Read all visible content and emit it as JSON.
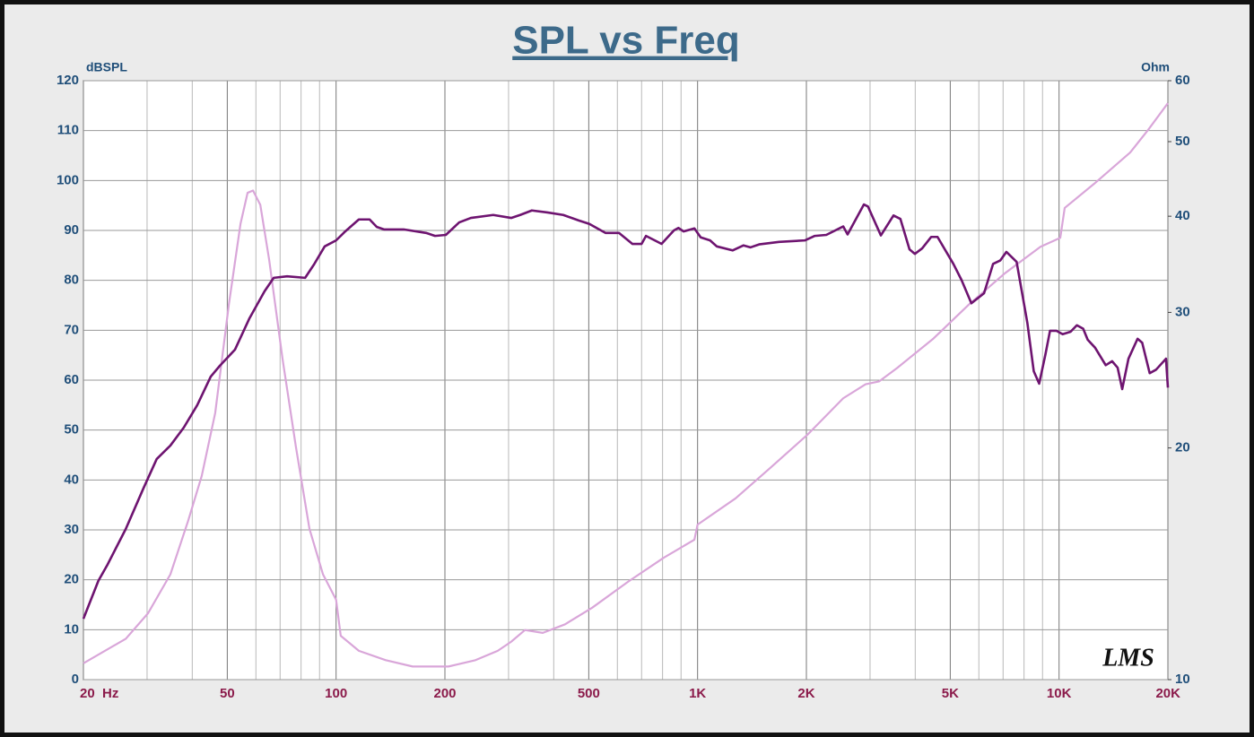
{
  "chart_data": {
    "type": "line",
    "title": "SPL vs Freq",
    "y_label": "dBSPL",
    "y2_label": "Ohm",
    "watermark": "LMS",
    "xlog": true,
    "xlim": [
      20,
      20000
    ],
    "xticks": [
      {
        "value": 20,
        "label": "20  Hz"
      },
      50,
      100,
      200,
      500,
      {
        "value": 1000,
        "label": "1K"
      },
      {
        "value": 2000,
        "label": "2K"
      },
      {
        "value": 5000,
        "label": "5K"
      },
      {
        "value": 10000,
        "label": "10K"
      },
      {
        "value": 20000,
        "label": "20K"
      }
    ],
    "x_minor_grid": [
      30,
      40,
      60,
      70,
      80,
      90,
      300,
      400,
      600,
      700,
      800,
      900,
      3000,
      4000,
      6000,
      7000,
      8000,
      9000
    ],
    "ylim": [
      0,
      120
    ],
    "yticks": [
      0,
      10,
      20,
      30,
      40,
      50,
      60,
      70,
      80,
      90,
      100,
      110,
      120
    ],
    "y2log": true,
    "y2lim": [
      10,
      60
    ],
    "y2ticks": [
      10,
      20,
      30,
      40,
      50,
      60
    ],
    "grid": true,
    "series": [
      {
        "color": "#6e1470",
        "x": [
          20,
          22,
          23.3,
          26.2,
          29.3,
          31.9,
          34.8,
          37.9,
          41.3,
          45,
          47.7,
          52.5,
          57.6,
          63.4,
          67.2,
          73.2,
          82.1,
          86.9,
          93,
          100,
          106,
          115.6,
          123.8,
          129.6,
          135.7,
          153.8,
          177.4,
          187.8,
          201.2,
          219,
          236,
          272,
          305,
          323,
          348,
          384,
          425,
          469,
          502,
          556,
          606,
          660,
          700,
          720,
          795,
          860,
          885,
          915,
          980,
          1020,
          1083,
          1130,
          1250,
          1340,
          1400,
          1480,
          1680,
          1980,
          2110,
          2270,
          2529,
          2600,
          2885,
          2960,
          3214,
          3483,
          3640,
          3857,
          3990,
          4180,
          4430,
          4610,
          5100,
          5370,
          5720,
          6200,
          6570,
          6880,
          7150,
          7630,
          8170,
          8510,
          8810,
          9170,
          9440,
          9830,
          10230,
          10760,
          11200,
          11660,
          12000,
          12580,
          13460,
          14020,
          14520,
          14950,
          15560,
          16490,
          16980,
          17810,
          18550,
          19760,
          20000
        ],
        "values": [
          12.2,
          19.8,
          23,
          30.2,
          38.3,
          44.2,
          46.9,
          50.5,
          55,
          60.7,
          62.9,
          66.1,
          72.4,
          77.8,
          80.5,
          80.8,
          80.5,
          83.2,
          86.8,
          88,
          89.8,
          92.2,
          92.2,
          90.7,
          90.2,
          90.2,
          89.5,
          88.9,
          89.1,
          91.6,
          92.5,
          93.1,
          92.5,
          93.1,
          94,
          93.6,
          93.1,
          92,
          91.3,
          89.5,
          89.5,
          87.3,
          87.3,
          88.9,
          87.3,
          90,
          90.5,
          89.8,
          90.4,
          88.6,
          88,
          86.8,
          86,
          87,
          86.6,
          87.2,
          87.7,
          88,
          88.9,
          89.1,
          90.8,
          89.2,
          95.2,
          94.8,
          89,
          93,
          92.3,
          86.2,
          85.3,
          86.4,
          88.7,
          88.7,
          83.3,
          80.1,
          75.4,
          77.4,
          83.3,
          84,
          85.7,
          83.7,
          71.5,
          61.8,
          59.3,
          65.2,
          69.9,
          69.9,
          69.2,
          69.7,
          71,
          70.3,
          68.1,
          66.5,
          63,
          63.8,
          62.5,
          58.2,
          64.3,
          68.3,
          67.5,
          61.4,
          62.1,
          64.3,
          58.5
        ],
        "axis": "y"
      },
      {
        "color": "#d9a6d9",
        "x": [
          20,
          26.2,
          30.2,
          34.8,
          39,
          42.5,
          46.3,
          50.5,
          54.4,
          56.9,
          58.9,
          61.7,
          65.3,
          71.1,
          77.5,
          84.4,
          92,
          100,
          103,
          115.6,
          137.2,
          162.8,
          204.6,
          243,
          280,
          305,
          333,
          373,
          430,
          511,
          642,
          806,
          980,
          1000,
          1274,
          1601,
          2012,
          2528,
          2916,
          3176,
          3563,
          4476,
          5625,
          7068,
          8882,
          10077,
          10365,
          12520,
          15730,
          17640,
          20000
        ],
        "values": [
          10.5,
          11.3,
          12.2,
          13.7,
          16.1,
          18.4,
          22.2,
          30.7,
          39.1,
          42.9,
          43.2,
          41.4,
          35.1,
          26.1,
          20,
          15.7,
          13.7,
          12.7,
          11.4,
          10.9,
          10.6,
          10.4,
          10.4,
          10.6,
          10.9,
          11.2,
          11.6,
          11.5,
          11.8,
          12.4,
          13.4,
          14.4,
          15.2,
          15.9,
          17.2,
          18.9,
          20.8,
          23.2,
          24.2,
          24.4,
          25.4,
          27.7,
          30.7,
          33.7,
          36.5,
          37.5,
          41,
          44.1,
          48.4,
          51.8,
          56.1
        ],
        "axis": "y2"
      }
    ]
  }
}
